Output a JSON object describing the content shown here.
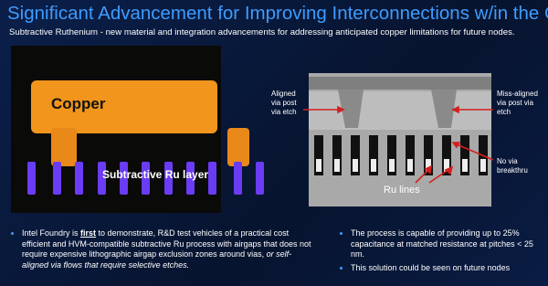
{
  "header": {
    "title": "Significant Advancement for Improving Interconnections w/in the Chip",
    "subtitle": "Subtractive Ruthenium - new material and integration advancements for addressing anticipated copper limitations for future nodes."
  },
  "left_image": {
    "labels": [
      "Copper",
      "Subtractive Ru layer"
    ]
  },
  "right_image": {
    "labels": [
      "Aligned via post via etch",
      "Miss-aligned via post via etch",
      "No via breakthru",
      "Ru lines"
    ]
  },
  "bullets_left": [
    {
      "parts": [
        "Intel Foundry is ",
        "first",
        " to demonstrate, R&D test vehicles of a practical cost efficient and HVM-compatible subtractive Ru process with airgaps that does not require expensive lithographic airgap exclusion zones around vias, ",
        "or self-aligned via flows that require selective etches."
      ]
    }
  ],
  "bullets_right": [
    "The process is capable of providing up to 25% capacitance at matched resistance at pitches < 25 nm.",
    "This solution could be seen on future nodes"
  ]
}
